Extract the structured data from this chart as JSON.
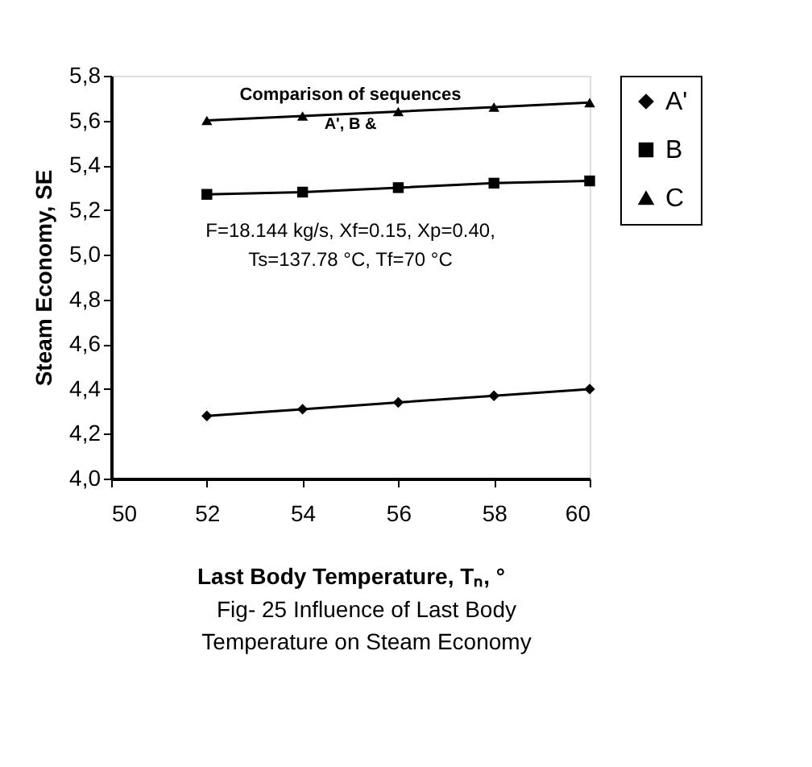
{
  "chart_data": {
    "type": "line",
    "xlabel": "Last Body Temperature, Tₙ, °",
    "ylabel": "Steam Economy, SE",
    "x": [
      52,
      54,
      56,
      58,
      60
    ],
    "series": [
      {
        "name": "A'",
        "color": "#000000",
        "marker": "diamond",
        "values": [
          4.28,
          4.31,
          4.34,
          4.37,
          4.4
        ]
      },
      {
        "name": "B",
        "color": "#000000",
        "marker": "square",
        "values": [
          5.27,
          5.28,
          5.3,
          5.32,
          5.33
        ]
      },
      {
        "name": "C",
        "color": "#000000",
        "marker": "triangle",
        "values": [
          5.6,
          5.62,
          5.64,
          5.66,
          5.68
        ]
      }
    ],
    "xlim": [
      50,
      60
    ],
    "xticks": [
      50,
      52,
      54,
      56,
      58,
      60
    ],
    "ylim": [
      4.0,
      5.8
    ],
    "yticks": [
      {
        "value": 4.0,
        "label": "4,0"
      },
      {
        "value": 4.2,
        "label": "4,2"
      },
      {
        "value": 4.4,
        "label": "4,4"
      },
      {
        "value": 4.6,
        "label": "4,6"
      },
      {
        "value": 4.8,
        "label": "4,8"
      },
      {
        "value": 5.0,
        "label": "5,0"
      },
      {
        "value": 5.2,
        "label": "5,2"
      },
      {
        "value": 5.4,
        "label": "5,4"
      },
      {
        "value": 5.6,
        "label": "5,6"
      },
      {
        "value": 5.8,
        "label": "5,8"
      }
    ],
    "grid": false,
    "legend": "right",
    "line_style": "solid",
    "annotations": [
      "Comparison of sequences",
      "A', B &",
      "F=18.144 kg/s, Xf=0.15, Xp=0.40,",
      "Ts=137.78 °C, Tf=70 °C",
      "Fig- 25 Influence of Last Body",
      "Temperature on Steam Economy"
    ]
  }
}
